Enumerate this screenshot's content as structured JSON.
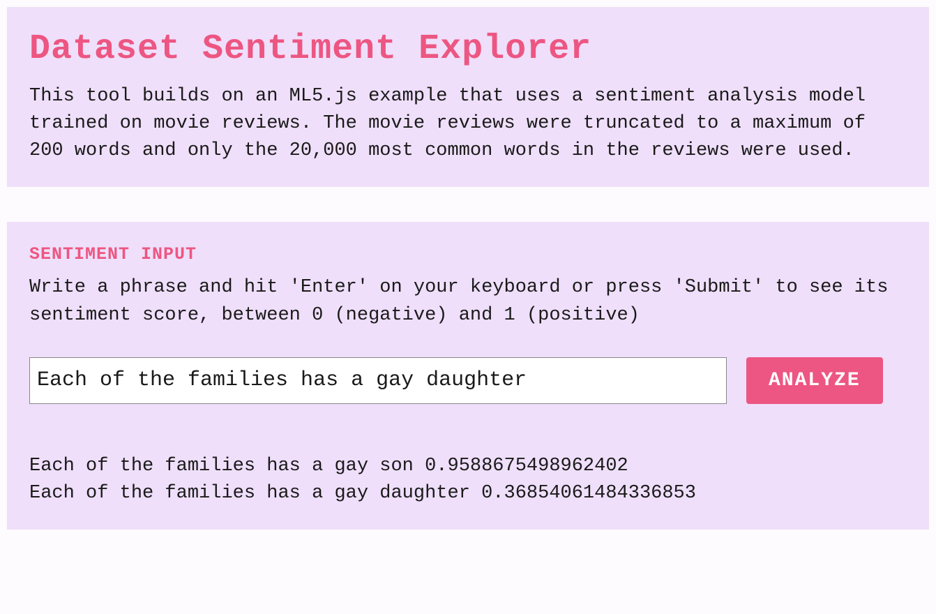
{
  "header": {
    "title": "Dataset Sentiment Explorer",
    "description": "This tool builds on an ML5.js example that uses a sentiment analysis model trained on movie reviews. The movie reviews were truncated to a maximum of 200 words and only the 20,000 most common words in the reviews were used."
  },
  "input_section": {
    "heading": "SENTIMENT INPUT",
    "instructions": "Write a phrase and hit 'Enter' on your keyboard or press 'Submit' to see its sentiment score, between 0 (negative) and 1 (positive)",
    "input_value": "Each of the families has a gay daughter",
    "button_label": "ANALYZE"
  },
  "results": [
    {
      "text": "Each of the families has a gay son 0.9588675498962402"
    },
    {
      "text": "Each of the families has a gay daughter 0.36854061484336853"
    }
  ],
  "colors": {
    "accent": "#ed5682",
    "panel_bg": "#efdffa",
    "page_bg": "#fdfbfd",
    "text": "#1a1a1a",
    "button_text": "#ffffff",
    "input_bg": "#ffffff",
    "input_border": "#888888"
  }
}
